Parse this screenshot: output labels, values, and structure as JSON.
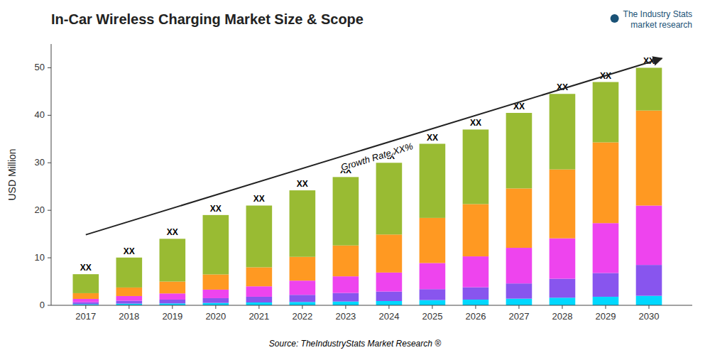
{
  "chart_data": {
    "type": "bar",
    "stacked": true,
    "grid": false,
    "title": "In-Car Wireless Charging Market Size & Scope",
    "ylabel": "USD Million",
    "source": "Source: TheIndustryStats Market Research ®",
    "logo": [
      "The Industry Stats",
      "market research"
    ],
    "annotations": [
      "Growth Rate XX%"
    ],
    "x": [
      2017,
      2018,
      2019,
      2020,
      2021,
      2022,
      2023,
      2024,
      2025,
      2026,
      2027,
      2028,
      2029,
      2030
    ],
    "xlim": [
      2016.2,
      2031.0
    ],
    "xticks": [
      2017,
      2018,
      2019,
      2020,
      2021,
      2022,
      2023,
      2024,
      2025,
      2026,
      2027,
      2028,
      2029,
      2030
    ],
    "ylim": [
      0,
      55
    ],
    "yticks": [
      0,
      10,
      20,
      30,
      40,
      50
    ],
    "bar_labels": [
      "XX",
      "XX",
      "XX",
      "XX",
      "XX",
      "XX",
      "XX",
      "XX",
      "XX",
      "XX",
      "XX",
      "XX",
      "XX",
      "XX"
    ],
    "series": [
      {
        "color": "#00d8ff",
        "values": [
          0.25,
          0.35,
          0.4,
          0.5,
          0.6,
          0.7,
          0.8,
          0.9,
          1.1,
          1.2,
          1.4,
          1.6,
          1.8,
          2.0
        ]
      },
      {
        "color": "#8855ee",
        "values": [
          0.4,
          0.6,
          0.8,
          1.0,
          1.2,
          1.5,
          1.8,
          2.0,
          2.3,
          2.6,
          3.2,
          4.0,
          5.0,
          6.5
        ]
      },
      {
        "color": "#ee44ee",
        "values": [
          0.7,
          1.0,
          1.3,
          1.8,
          2.2,
          3.0,
          3.5,
          4.0,
          5.5,
          6.5,
          7.5,
          8.5,
          10.5,
          12.5
        ]
      },
      {
        "color": "#ff9922",
        "values": [
          1.2,
          1.8,
          2.5,
          3.2,
          4.0,
          5.0,
          6.5,
          8.0,
          9.5,
          11.0,
          12.5,
          14.5,
          17.0,
          20.0
        ]
      },
      {
        "color": "#99bb33",
        "values": [
          4.0,
          6.3,
          9.0,
          12.5,
          13.0,
          14.0,
          14.4,
          15.1,
          15.6,
          15.7,
          15.9,
          15.9,
          12.7,
          9.0
        ]
      }
    ]
  }
}
